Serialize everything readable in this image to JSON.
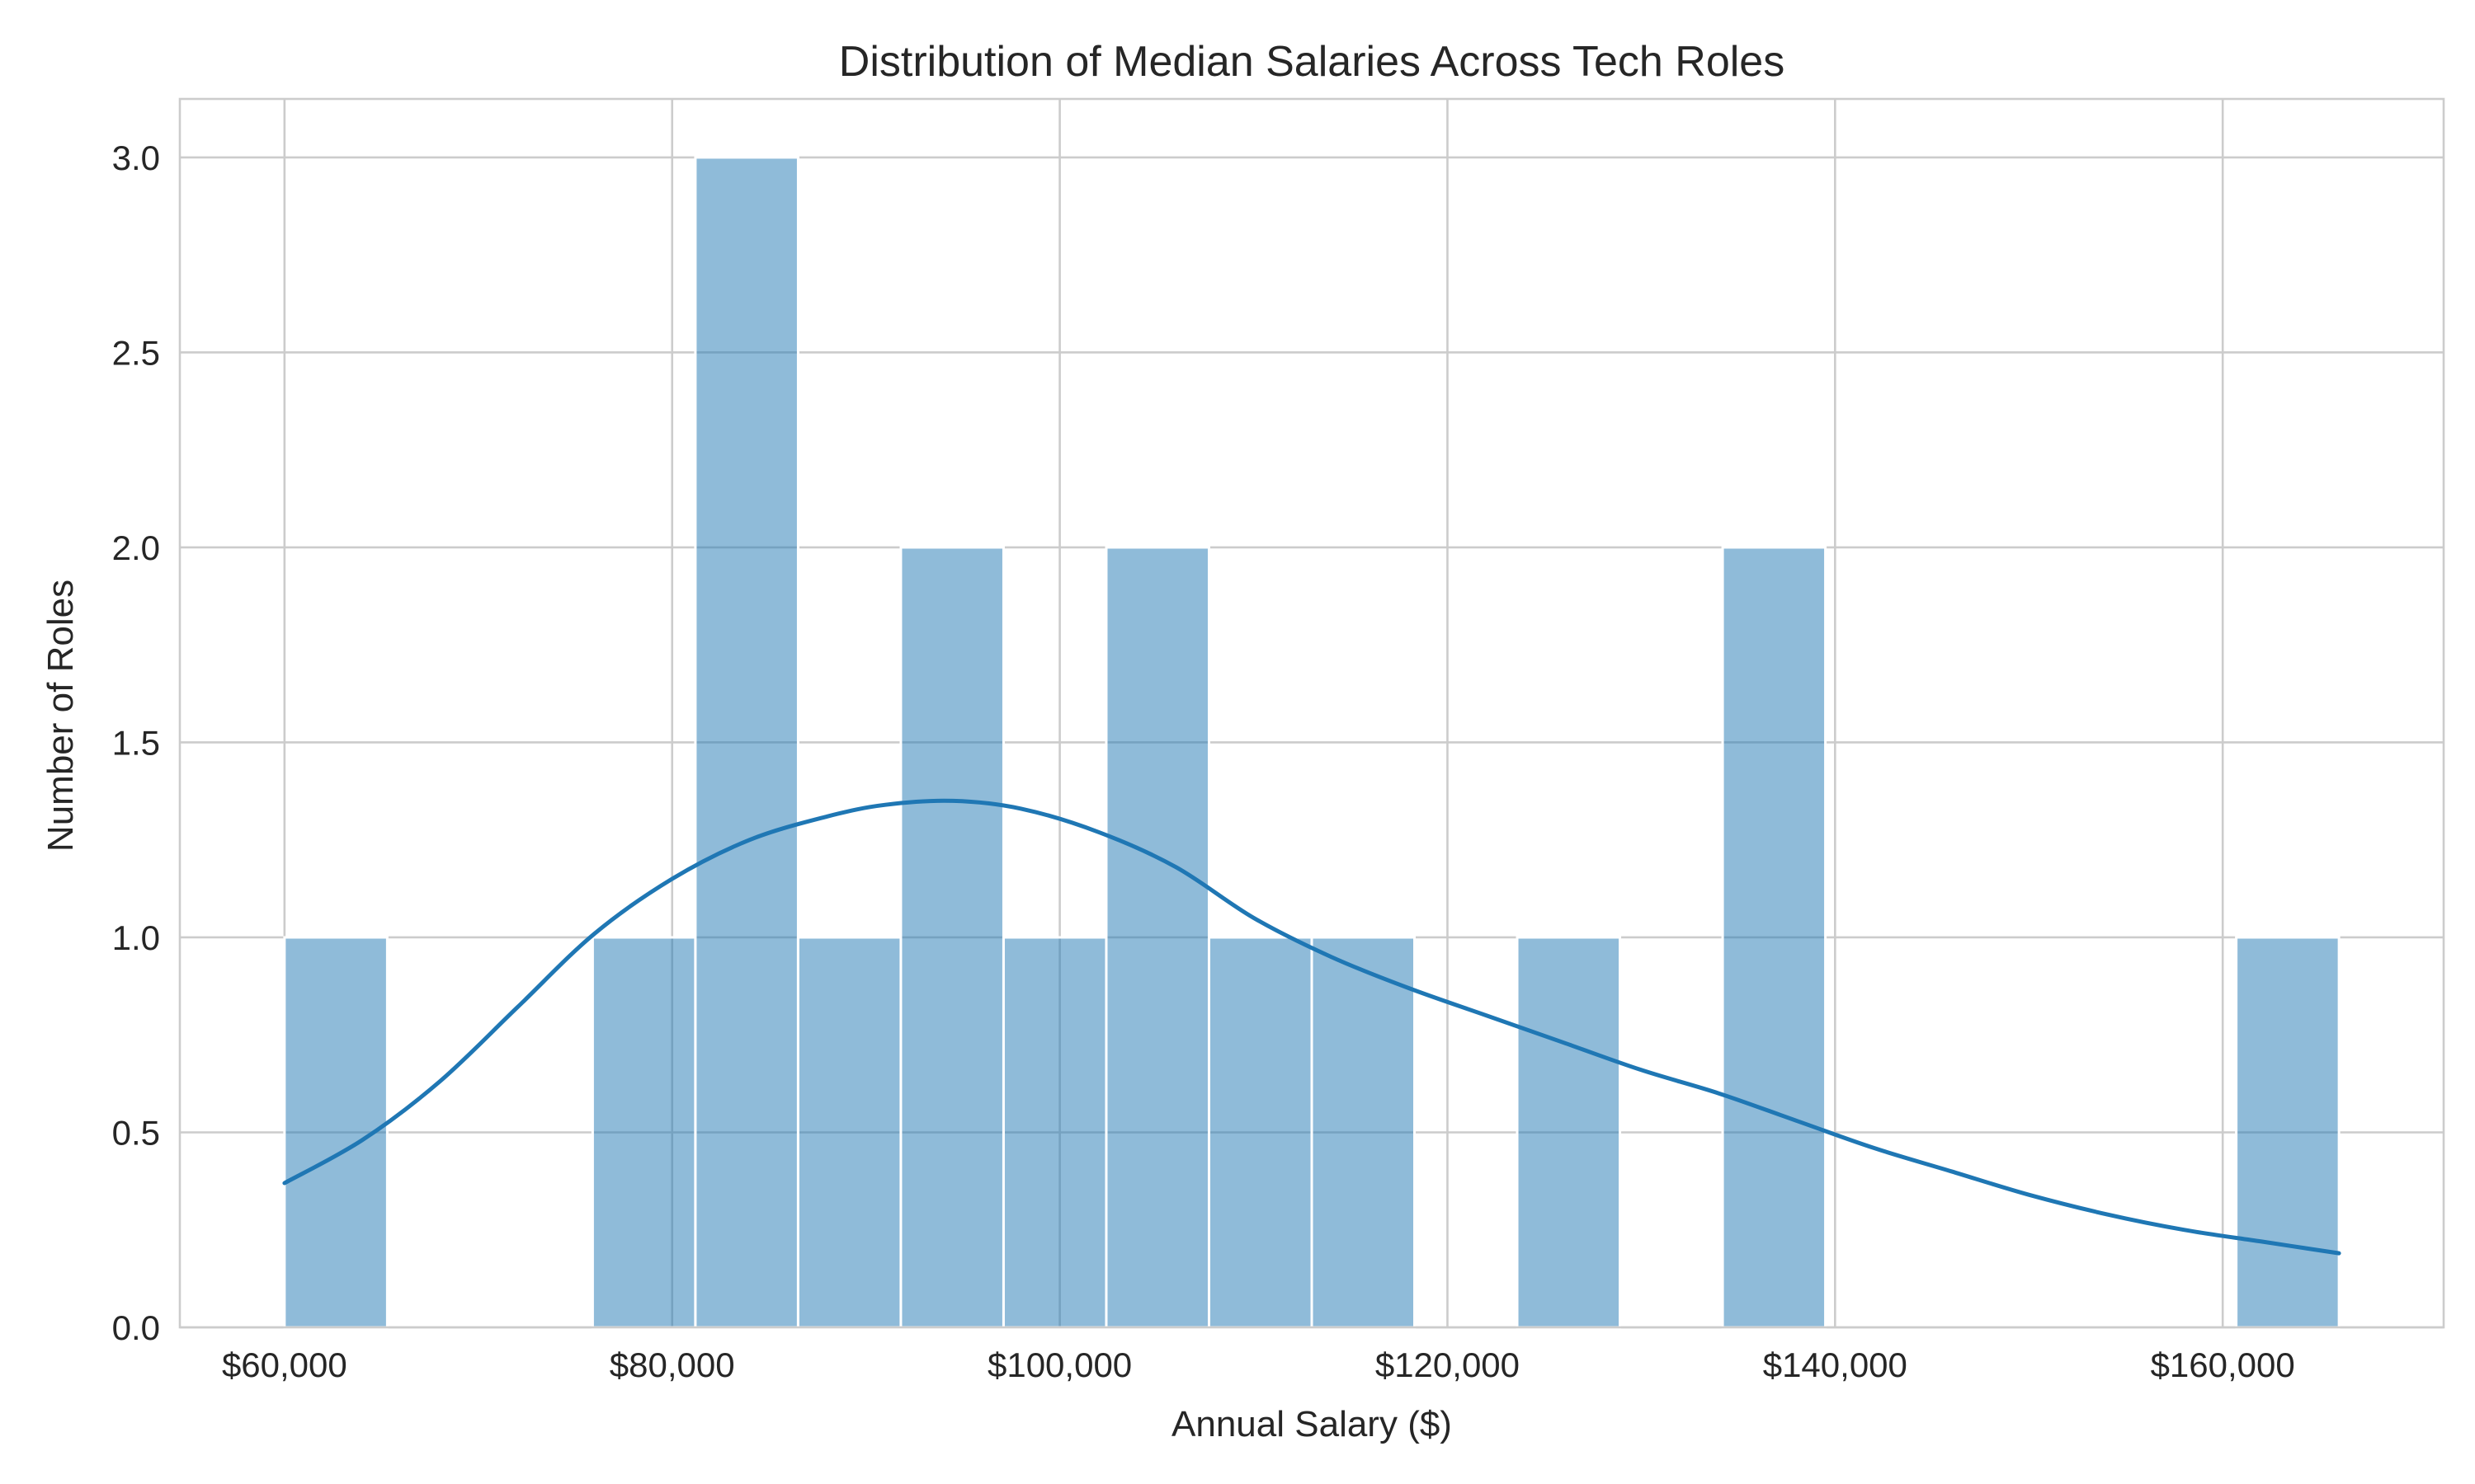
{
  "chart_data": {
    "type": "bar",
    "title": "Distribution of Median Salaries Across Tech Roles",
    "xlabel": "Annual Salary ($)",
    "ylabel": "Number of Roles",
    "xlim": [
      54600,
      171400
    ],
    "ylim": [
      0,
      3.15
    ],
    "x_ticks": [
      60000,
      80000,
      100000,
      120000,
      140000,
      160000
    ],
    "x_tick_labels": [
      "$60,000",
      "$80,000",
      "$100,000",
      "$120,000",
      "$140,000",
      "$160,000"
    ],
    "y_ticks": [
      0,
      0.5,
      1.0,
      1.5,
      2.0,
      2.5,
      3.0
    ],
    "y_tick_labels": [
      "0.0",
      "0.5",
      "1.0",
      "1.5",
      "2.0",
      "2.5",
      "3.0"
    ],
    "grid": true,
    "bins": [
      {
        "x0": 60000,
        "x1": 65300,
        "count": 1
      },
      {
        "x0": 75900,
        "x1": 81200,
        "count": 1
      },
      {
        "x0": 81200,
        "x1": 86500,
        "count": 3
      },
      {
        "x0": 86500,
        "x1": 91800,
        "count": 1
      },
      {
        "x0": 91800,
        "x1": 97100,
        "count": 2
      },
      {
        "x0": 97100,
        "x1": 102400,
        "count": 1
      },
      {
        "x0": 102400,
        "x1": 107700,
        "count": 2
      },
      {
        "x0": 107700,
        "x1": 113000,
        "count": 1
      },
      {
        "x0": 113000,
        "x1": 118300,
        "count": 1
      },
      {
        "x0": 123600,
        "x1": 128900,
        "count": 1
      },
      {
        "x0": 134200,
        "x1": 139500,
        "count": 2
      },
      {
        "x0": 160700,
        "x1": 166000,
        "count": 1
      }
    ],
    "kde": {
      "x": [
        60000,
        64000,
        68000,
        72000,
        76000,
        80000,
        84000,
        88000,
        91000,
        94500,
        98000,
        102000,
        106000,
        110000,
        114000,
        118000,
        122000,
        126000,
        130000,
        134000,
        138000,
        142000,
        146000,
        150000,
        154000,
        158000,
        162000,
        166000
      ],
      "y": [
        0.37,
        0.48,
        0.63,
        0.82,
        1.01,
        1.15,
        1.25,
        1.31,
        1.34,
        1.35,
        1.33,
        1.27,
        1.18,
        1.05,
        0.95,
        0.87,
        0.8,
        0.73,
        0.66,
        0.6,
        0.53,
        0.46,
        0.4,
        0.34,
        0.29,
        0.25,
        0.22,
        0.19
      ]
    }
  }
}
